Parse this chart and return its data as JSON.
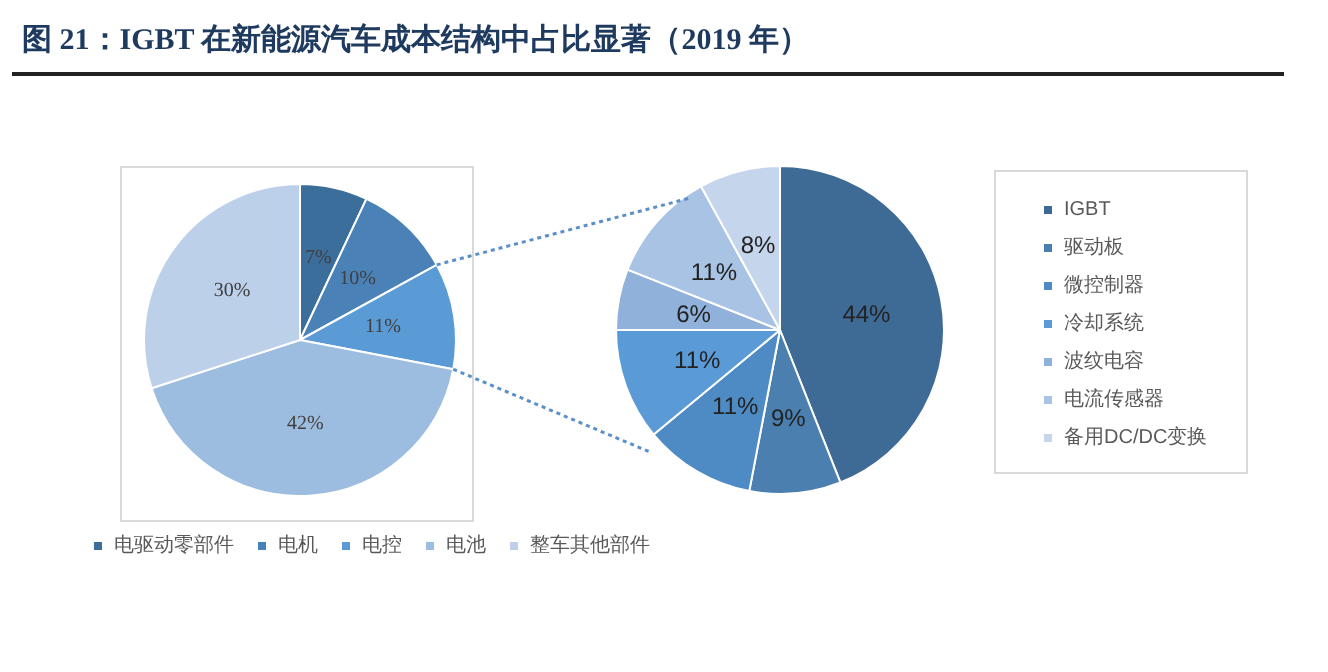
{
  "chart_data": [
    {
      "type": "pie",
      "title": "图 21：IGBT 在新能源汽车成本结构中占比显著（2019 年）",
      "categories": [
        "电驱动零部件",
        "电机",
        "电控",
        "电池",
        "整车其他部件"
      ],
      "values": [
        7,
        10,
        11,
        42,
        30
      ],
      "value_labels": [
        "7%",
        "10%",
        "11%",
        "42%",
        "30%"
      ],
      "colors": [
        "#3c6e9c",
        "#4a82b8",
        "#5b9bd5",
        "#9dbde0",
        "#bdd0ea"
      ],
      "legend": "bottom"
    },
    {
      "type": "pie",
      "categories": [
        "IGBT",
        "驱动板",
        "微控制器",
        "冷却系统",
        "波纹电容",
        "电流传感器",
        "备用DC/DC变换"
      ],
      "values": [
        44,
        9,
        11,
        11,
        6,
        11,
        8
      ],
      "value_labels": [
        "44%",
        "9%",
        "11%",
        "11%",
        "6%",
        "11%",
        "8%"
      ],
      "colors": [
        "#3e6b96",
        "#4a7fb0",
        "#4e8bc4",
        "#5a9ad6",
        "#8fb1da",
        "#a9c3e5",
        "#c5d5ec"
      ],
      "legend": "right"
    }
  ]
}
